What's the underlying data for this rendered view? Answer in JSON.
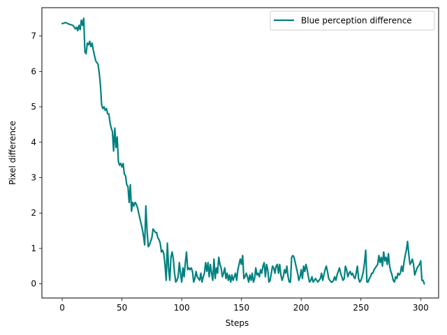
{
  "chart_data": {
    "type": "line",
    "title": "",
    "xlabel": "Steps",
    "ylabel": "Pixel difference",
    "xlim": [
      -17,
      315
    ],
    "ylim": [
      -0.4,
      7.8
    ],
    "xticks": [
      0,
      50,
      100,
      150,
      200,
      250,
      300
    ],
    "yticks": [
      0,
      1,
      2,
      3,
      4,
      5,
      6,
      7
    ],
    "grid": false,
    "legend_position": "top-right",
    "series": [
      {
        "name": "Blue perception difference",
        "color": "#008080",
        "x": [
          0,
          3,
          6,
          9,
          11,
          12,
          13,
          14,
          15,
          16,
          17,
          18,
          19,
          20,
          21,
          22,
          23,
          24,
          25,
          26,
          27,
          28,
          29,
          30,
          31,
          32,
          33,
          34,
          35,
          36,
          37,
          38,
          39,
          40,
          41,
          42,
          43,
          44,
          45,
          46,
          47,
          48,
          49,
          50,
          51,
          52,
          53,
          54,
          55,
          56,
          57,
          58,
          59,
          60,
          61,
          62,
          63,
          64,
          65,
          66,
          67,
          68,
          69,
          70,
          71,
          72,
          73,
          74,
          75,
          76,
          77,
          78,
          79,
          80,
          81,
          82,
          83,
          84,
          85,
          86,
          87,
          88,
          89,
          90,
          91,
          92,
          93,
          94,
          95,
          96,
          97,
          98,
          99,
          100,
          101,
          102,
          103,
          104,
          105,
          106,
          107,
          108,
          109,
          110,
          111,
          112,
          113,
          114,
          115,
          116,
          117,
          118,
          119,
          120,
          121,
          122,
          123,
          124,
          125,
          126,
          127,
          128,
          129,
          130,
          131,
          132,
          133,
          134,
          135,
          136,
          137,
          138,
          139,
          140,
          141,
          142,
          143,
          144,
          145,
          146,
          147,
          148,
          149,
          150,
          151,
          152,
          153,
          154,
          155,
          156,
          157,
          158,
          159,
          160,
          161,
          162,
          163,
          164,
          165,
          166,
          167,
          168,
          169,
          170,
          171,
          172,
          173,
          174,
          175,
          176,
          177,
          178,
          179,
          180,
          181,
          182,
          183,
          184,
          185,
          186,
          187,
          188,
          189,
          190,
          191,
          192,
          193,
          194,
          195,
          196,
          197,
          198,
          199,
          200,
          201,
          202,
          203,
          204,
          205,
          206,
          207,
          208,
          209,
          210,
          211,
          212,
          213,
          214,
          215,
          216,
          217,
          218,
          219,
          220,
          221,
          222,
          223,
          224,
          225,
          226,
          227,
          228,
          229,
          230,
          231,
          232,
          233,
          234,
          235,
          236,
          237,
          238,
          239,
          240,
          241,
          242,
          243,
          244,
          245,
          246,
          247,
          248,
          249,
          250,
          251,
          252,
          253,
          254,
          255,
          256,
          257,
          258,
          259,
          260,
          261,
          262,
          263,
          264,
          265,
          266,
          267,
          268,
          269,
          270,
          271,
          272,
          273,
          274,
          275,
          276,
          277,
          278,
          279,
          280,
          281,
          282,
          283,
          284,
          285,
          286,
          287,
          288,
          289,
          290,
          291,
          292,
          293,
          294,
          295,
          296,
          297,
          298,
          299,
          300,
          301,
          302,
          303
        ],
        "y": [
          7.35,
          7.38,
          7.33,
          7.3,
          7.2,
          7.25,
          7.15,
          7.3,
          7.18,
          7.45,
          7.3,
          7.5,
          6.55,
          6.5,
          6.8,
          6.75,
          6.85,
          6.7,
          6.8,
          6.6,
          6.45,
          6.3,
          6.25,
          6.2,
          5.95,
          5.6,
          5.05,
          4.95,
          5.0,
          4.9,
          4.95,
          4.8,
          4.8,
          4.55,
          4.4,
          4.3,
          3.75,
          4.4,
          3.85,
          4.15,
          3.45,
          3.35,
          3.4,
          3.3,
          3.4,
          3.1,
          3.05,
          2.8,
          2.75,
          2.3,
          2.8,
          2.05,
          2.3,
          2.2,
          2.3,
          2.25,
          2.15,
          2.0,
          1.85,
          1.7,
          1.55,
          1.35,
          1.1,
          2.2,
          1.5,
          1.05,
          1.1,
          1.2,
          1.3,
          1.55,
          1.5,
          1.45,
          1.45,
          1.3,
          1.25,
          1.15,
          0.9,
          0.95,
          0.85,
          0.55,
          0.1,
          1.15,
          0.45,
          0.1,
          0.75,
          0.9,
          0.7,
          0.3,
          0.05,
          0.1,
          0.2,
          0.6,
          0.3,
          0.05,
          0.45,
          0.2,
          0.6,
          0.9,
          0.4,
          0.45,
          0.4,
          0.45,
          0.35,
          0.05,
          0.15,
          0.35,
          0.2,
          0.15,
          0.1,
          0.3,
          0.05,
          0.2,
          0.3,
          0.6,
          0.35,
          0.6,
          0.2,
          0.55,
          0.3,
          0.1,
          0.7,
          0.15,
          0.45,
          0.3,
          0.75,
          0.55,
          0.45,
          0.2,
          0.3,
          0.45,
          0.15,
          0.3,
          0.1,
          0.25,
          0.05,
          0.25,
          0.1,
          0.2,
          0.3,
          0.1,
          0.4,
          0.55,
          0.7,
          0.55,
          0.8,
          0.15,
          0.2,
          0.3,
          0.2,
          0.05,
          0.25,
          0.1,
          0.3,
          0.05,
          0.15,
          0.45,
          0.25,
          0.3,
          0.2,
          0.4,
          0.3,
          0.5,
          0.6,
          0.2,
          0.55,
          0.4,
          0.05,
          0.1,
          0.3,
          0.5,
          0.45,
          0.3,
          0.5,
          0.55,
          0.3,
          0.55,
          0.25,
          0.1,
          0.2,
          0.4,
          0.3,
          0.5,
          0.2,
          0.05,
          0.05,
          0.75,
          0.8,
          0.75,
          0.6,
          0.45,
          0.3,
          0.1,
          0.2,
          0.4,
          0.15,
          0.5,
          0.35,
          0.55,
          0.4,
          0.2,
          0.05,
          0.1,
          0.2,
          0.05,
          0.1,
          0.15,
          0.1,
          0.05,
          0.1,
          0.15,
          0.3,
          0.1,
          0.25,
          0.4,
          0.5,
          0.35,
          0.15,
          0.1,
          0.05,
          0.05,
          0.1,
          0.2,
          0.1,
          0.25,
          0.35,
          0.45,
          0.3,
          0.2,
          0.1,
          0.15,
          0.5,
          0.4,
          0.2,
          0.3,
          0.35,
          0.25,
          0.3,
          0.2,
          0.15,
          0.3,
          0.5,
          0.15,
          0.05,
          0.1,
          0.2,
          0.35,
          0.6,
          0.95,
          0.05,
          0.05,
          0.15,
          0.2,
          0.3,
          0.3,
          0.4,
          0.45,
          0.5,
          0.55,
          0.8,
          0.6,
          0.75,
          0.5,
          0.9,
          0.65,
          0.75,
          0.55,
          0.85,
          0.5,
          0.35,
          0.25,
          0.1,
          0.05,
          0.2,
          0.15,
          0.3,
          0.25,
          0.3,
          0.5,
          0.35,
          0.6,
          0.8,
          0.95,
          1.2,
          0.85,
          0.55,
          0.6,
          0.7,
          0.55,
          0.25,
          0.35,
          0.45,
          0.5,
          0.55,
          0.65,
          0.1,
          0.1,
          0.0
        ]
      }
    ]
  }
}
